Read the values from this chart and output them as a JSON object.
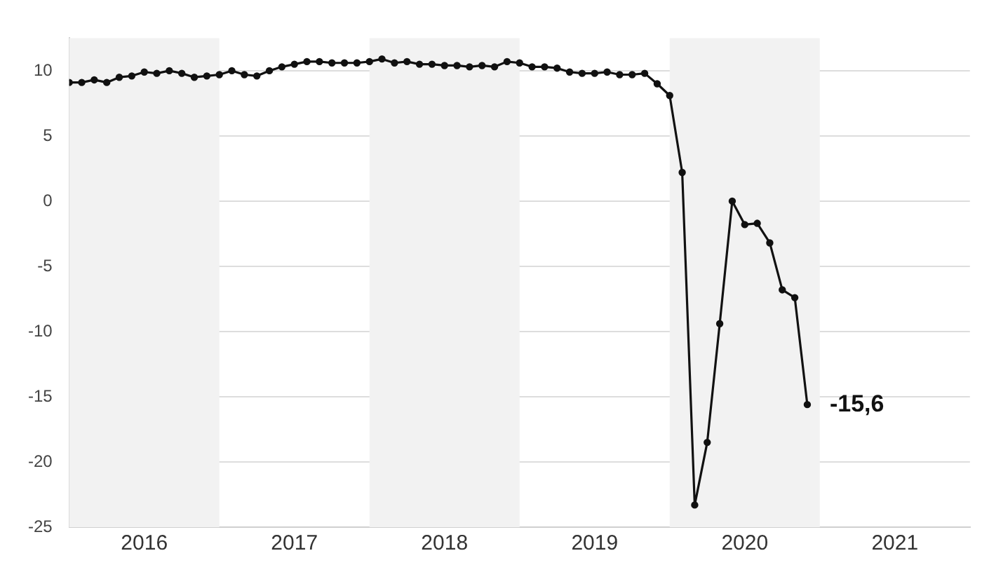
{
  "chart_data": {
    "type": "line",
    "x": [
      "2016-01",
      "2016-02",
      "2016-03",
      "2016-04",
      "2016-05",
      "2016-06",
      "2016-07",
      "2016-08",
      "2016-09",
      "2016-10",
      "2016-11",
      "2016-12",
      "2017-01",
      "2017-02",
      "2017-03",
      "2017-04",
      "2017-05",
      "2017-06",
      "2017-07",
      "2017-08",
      "2017-09",
      "2017-10",
      "2017-11",
      "2017-12",
      "2018-01",
      "2018-02",
      "2018-03",
      "2018-04",
      "2018-05",
      "2018-06",
      "2018-07",
      "2018-08",
      "2018-09",
      "2018-10",
      "2018-11",
      "2018-12",
      "2019-01",
      "2019-02",
      "2019-03",
      "2019-04",
      "2019-05",
      "2019-06",
      "2019-07",
      "2019-08",
      "2019-09",
      "2019-10",
      "2019-11",
      "2019-12",
      "2020-01",
      "2020-02",
      "2020-03",
      "2020-04",
      "2020-05",
      "2020-06",
      "2020-07",
      "2020-08",
      "2020-09",
      "2020-10",
      "2020-11",
      "2020-12"
    ],
    "series": [
      {
        "color": "#111111",
        "values": [
          9.1,
          9.1,
          9.3,
          9.1,
          9.5,
          9.6,
          9.9,
          9.8,
          10.0,
          9.8,
          9.5,
          9.6,
          9.7,
          10.0,
          9.7,
          9.6,
          10.0,
          10.3,
          10.5,
          10.7,
          10.7,
          10.6,
          10.6,
          10.6,
          10.7,
          10.9,
          10.6,
          10.7,
          10.5,
          10.5,
          10.4,
          10.4,
          10.3,
          10.4,
          10.3,
          10.7,
          10.6,
          10.3,
          10.3,
          10.2,
          9.9,
          9.8,
          9.8,
          9.9,
          9.7,
          9.7,
          9.8,
          9.0,
          8.1,
          2.2,
          -23.3,
          -18.5,
          -9.4,
          0.0,
          -1.8,
          -1.7,
          -3.2,
          -6.8,
          -7.4,
          -15.6
        ]
      }
    ],
    "xlim": [
      "2016-01",
      "2022-01"
    ],
    "xticks": [
      {
        "value": "2016-07",
        "label": "2016"
      },
      {
        "value": "2017-07",
        "label": "2017"
      },
      {
        "value": "2018-07",
        "label": "2018"
      },
      {
        "value": "2019-07",
        "label": "2019"
      },
      {
        "value": "2020-07",
        "label": "2020"
      },
      {
        "value": "2021-07",
        "label": "2021"
      }
    ],
    "ylim": [
      -25,
      12.5
    ],
    "yticks": [
      -25,
      -20,
      -15,
      -10,
      -5,
      0,
      5,
      10
    ],
    "bands": [
      {
        "axis": "x",
        "from": "2016-01",
        "to": "2017-01",
        "color": "#f2f2f2"
      },
      {
        "axis": "x",
        "from": "2018-01",
        "to": "2019-01",
        "color": "#f2f2f2"
      },
      {
        "axis": "x",
        "from": "2020-01",
        "to": "2021-01",
        "color": "#f2f2f2"
      }
    ],
    "annotations": [
      {
        "text": "-15,6",
        "x": "2020-12",
        "y": -15.6
      }
    ],
    "grid": "y",
    "legend": false,
    "marker": "circle",
    "line_style": "solid"
  }
}
